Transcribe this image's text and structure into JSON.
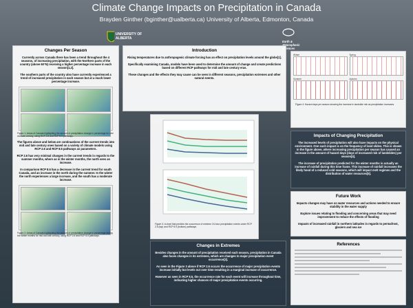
{
  "header": {
    "title": "Climate Change Impacts on Precipitation in Canada",
    "authors": "Brayden Ginther (bginther@ualberta.ca) University of Alberta, Edmonton, Canada",
    "university": "UNIVERSITY OF ALBERTA",
    "department": "Earth & Atmospheric Sciences"
  },
  "seasons": {
    "title": "Changes Per Season",
    "paragraphs": [
      "Currently across Canada there has been a trend throughout the 4 seasons, of increasing precipitation, with the Northern parts of the country (above 60°N) receiving a higher percentage increase in each season[1,2].",
      "The southern parts of the country also have currently experienced a trend of increased precipitation in each season but at a much lower percentage increase.",
      "The figures above and below are continuations of the current trends into mid and late century ones based on a variety of climate models using RCP 2.6 and RCP 8.5 pathways as parameters.",
      "RCP 2.6 has very minimal changes in the current trends in regards to the summer months, where as in the winter months, the north sees an increase.",
      "In comparison RCP 8.5 has a decrease in the current trend for south Canada, and an increase in the north during the summer. In the winter the north experiences a large increase, and the south has a moderate increase."
    ],
    "captions": [
      "Figure 1: Areas of Canada highlighting the amount of precipitation change in percentage for mid and late century, using RCP 2.6 and RCP 8.5 pathways.",
      "Figure 2: Areas of Canada highlighting the amount of precipitation change in percentage during the winter months for mid and late century, using RCP 2.6 and RCP 8.5 pathways."
    ]
  },
  "introduction": {
    "title": "Introduction",
    "paragraphs": [
      "Rising temperatures due to anthropogenic climate forcing has an effect on precipitation levels around the globe[1].",
      "Specifically examining Canada, models have been used to determine the amount of change and create predictions based on different RCP pathways for mid and late century eras.",
      "These changes and the effects they may cause can be seen in different seasons, precipitation extremes and other natural events."
    ]
  },
  "extremes": {
    "title": "Changes in Extremes",
    "figure_caption": "Figure 3: A chart that predicts the occurrence of extreme 24-hour precipitation events under RCP 2.6 (top) and RCP 8.5 (bottom) pathways.",
    "paragraphs": [
      "Besides changes in the amount of precipitation received each season, precipitation in Canada also faces changes in its extremes, which are changes to major precipitation event occurrence[3].",
      "As seen in the Figure 3 above if RCP 2.6 occurs the occurrence of major precipitation events increase initially but levels out over time resulting in a marginal increase of occurrence.",
      "However as seen in RCP 8.5, the occurrence rate for each event will increase throughout time, indicating higher chances of major precipitation events occurring."
    ]
  },
  "impacts": {
    "title": "Impacts of Changing Precipitation",
    "figure_panels": [
      "Winter",
      "Spring",
      "Summer",
      "Autumn"
    ],
    "figure_caption": "Figure 4: Hazard days per season showing the increase in landslide risk as precipitation increases.",
    "paragraphs": [
      "The increased levels of precipitation will also have impacts on the physical environment. One such impact is on the frequency of land slides. This is shown in the figure above, where increasing precipitation per season has caused an increase in the amount of hazard days (days of increased risk of landslides) per season[4].",
      "The increase of precipitation predicted for the winter months is actually an increase of rainfall during this time frame. This increase of rainfall increases the likely hood of a reduced cold seasons, which will impact melt regimes and the distribution of water resources[5]."
    ]
  },
  "future_work": {
    "title": "Future Work",
    "items": [
      "Impacts changes may have on water resources and actions needed to ensure stability in the water supply",
      "Explore issues relating to flooding and concerning areas that may need improvement to reduce the effects of flooding",
      "Impacts of increased rainfall in northern latitudes in regards to permafrost, glaciers and sea ice"
    ]
  },
  "references": {
    "title": "References"
  }
}
